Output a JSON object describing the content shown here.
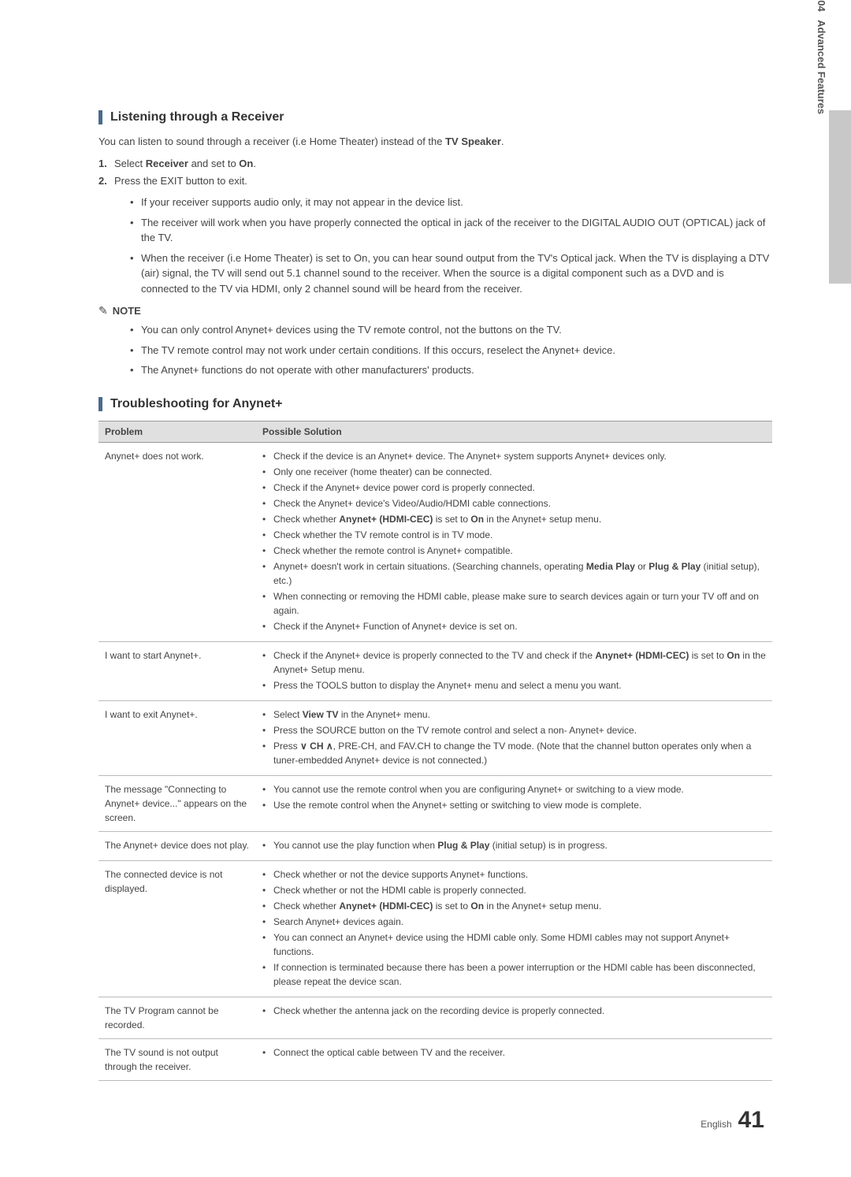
{
  "sidebar": {
    "chapterNum": "04",
    "chapterTitle": "Advanced Features"
  },
  "section1": {
    "title": "Listening through a Receiver",
    "intro_pre": "You can listen to sound through a receiver (i.e Home Theater) instead of the ",
    "intro_bold": "TV Speaker",
    "intro_post": ".",
    "step1_pre": "Select ",
    "step1_b1": "Receiver",
    "step1_mid": " and set to ",
    "step1_b2": "On",
    "step1_post": ".",
    "step2": "Press the EXIT button to exit.",
    "bullets": [
      "If your receiver supports audio only, it may not appear in the device list.",
      "The receiver will work when you have properly connected the optical in jack of the receiver to the DIGITAL AUDIO OUT (OPTICAL) jack of the TV.",
      "When the receiver (i.e Home Theater) is set to On, you can hear sound output from the TV's Optical jack. When the TV is displaying a DTV (air) signal, the TV will send out 5.1 channel sound to the receiver. When the source is a digital component such as a DVD and is connected to the TV via HDMI, only 2 channel sound will be heard from the receiver."
    ],
    "noteLabel": "NOTE",
    "noteBullets": [
      "You can only control Anynet+ devices using the TV remote control, not the buttons on the TV.",
      "The TV remote control may not work under certain conditions. If this occurs, reselect the Anynet+ device.",
      "The Anynet+ functions do not operate with other manufacturers' products."
    ]
  },
  "section2": {
    "title": "Troubleshooting for Anynet+",
    "headerProblem": "Problem",
    "headerSolution": "Possible Solution",
    "rows": [
      {
        "problem": "Anynet+ does not work.",
        "solutions": [
          {
            "t": "Check if the device is an Anynet+ device. The Anynet+ system supports Anynet+ devices only."
          },
          {
            "t": "Only one receiver (home theater) can be connected."
          },
          {
            "t": "Check if the Anynet+ device power cord is properly connected."
          },
          {
            "t": "Check the Anynet+ device's Video/Audio/HDMI cable connections."
          },
          {
            "html": "Check whether <b>Anynet+ (HDMI-CEC)</b> is set to <b>On</b> in the Anynet+ setup menu."
          },
          {
            "t": "Check whether the TV remote control is in TV mode."
          },
          {
            "t": "Check whether the remote control is Anynet+ compatible."
          },
          {
            "html": "Anynet+ doesn't work in certain situations. (Searching channels, operating <b>Media Play</b> or <b>Plug & Play</b> (initial setup), etc.)"
          },
          {
            "t": "When connecting or removing the HDMI cable, please make sure to search devices again or turn your TV off and on again."
          },
          {
            "t": "Check if the Anynet+ Function of Anynet+ device is set on."
          }
        ]
      },
      {
        "problem": "I want to start Anynet+.",
        "solutions": [
          {
            "html": "Check if the Anynet+ device is properly connected to the TV and check if the <b>Anynet+ (HDMI-CEC)</b> is set to <b>On</b> in the Anynet+ Setup menu."
          },
          {
            "t": "Press the TOOLS button to display the Anynet+ menu and select a menu you want."
          }
        ]
      },
      {
        "problem": "I want to exit Anynet+.",
        "solutions": [
          {
            "html": "Select <b>View TV</b> in the Anynet+ menu."
          },
          {
            "t": "Press the SOURCE button on the TV remote control and select a non- Anynet+ device."
          },
          {
            "html": "Press <span class='ch-arrow'>∨</span> <b>CH</b> <span class='ch-arrow'>∧</span>, PRE-CH, and FAV.CH to change the TV mode. (Note that the channel button operates only when a tuner-embedded Anynet+ device is not connected.)"
          }
        ]
      },
      {
        "problem": "The message \"Connecting to Anynet+ device...\" appears on the screen.",
        "solutions": [
          {
            "t": "You cannot use the remote control when you are configuring Anynet+ or switching to a view mode."
          },
          {
            "t": "Use the remote control when the Anynet+ setting or switching to view mode is complete."
          }
        ]
      },
      {
        "problem": "The Anynet+ device does not play.",
        "solutions": [
          {
            "html": "You cannot use the play function when <b>Plug & Play</b> (initial setup) is in progress."
          }
        ]
      },
      {
        "problem": "The connected device is not displayed.",
        "solutions": [
          {
            "t": "Check whether or not the device supports Anynet+ functions."
          },
          {
            "t": "Check whether or not the HDMI cable is properly connected."
          },
          {
            "html": "Check whether <b>Anynet+ (HDMI-CEC)</b> is set to <b>On</b> in the Anynet+ setup menu."
          },
          {
            "t": "Search Anynet+ devices again."
          },
          {
            "t": "You can connect an Anynet+ device using the HDMI cable only. Some HDMI cables may not support Anynet+ functions."
          },
          {
            "t": "If connection is terminated because there has been a power interruption or the HDMI cable has been disconnected, please repeat the device scan."
          }
        ]
      },
      {
        "problem": "The TV Program cannot be recorded.",
        "solutions": [
          {
            "t": "Check whether the antenna jack on the recording device is properly connected."
          }
        ]
      },
      {
        "problem": "The TV sound is not output through the receiver.",
        "solutions": [
          {
            "t": "Connect the optical cable between TV and the receiver."
          }
        ]
      }
    ]
  },
  "footer": {
    "language": "English",
    "page": "41"
  }
}
